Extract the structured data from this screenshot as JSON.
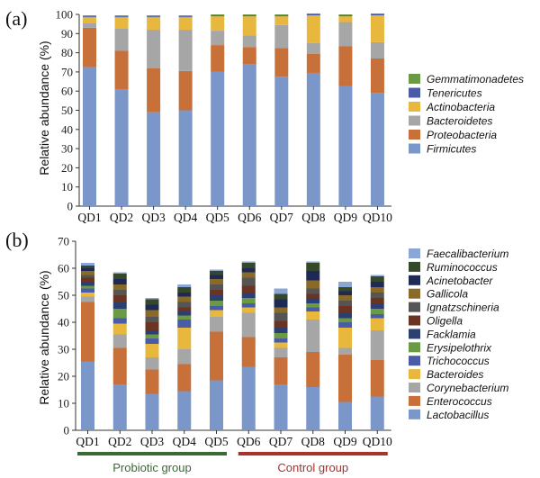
{
  "chart_data": [
    {
      "type": "bar",
      "stacked": true,
      "panel_label": "(a)",
      "ylabel": "Relative abundance (%)",
      "ylim": [
        0,
        100
      ],
      "yticks": [
        0,
        10,
        20,
        30,
        40,
        50,
        60,
        70,
        80,
        90,
        100
      ],
      "categories": [
        "QD1",
        "QD2",
        "QD3",
        "QD4",
        "QD5",
        "QD6",
        "QD7",
        "QD8",
        "QD9",
        "QD10"
      ],
      "legend_position": "right",
      "series": [
        {
          "name": "Firmicutes",
          "color": "#7b96c8",
          "values": [
            72.5,
            61,
            49,
            50,
            70,
            74,
            67.5,
            69.5,
            62.5,
            59
          ]
        },
        {
          "name": "Proteobacteria",
          "color": "#c8703a",
          "values": [
            20.5,
            20,
            23,
            20.5,
            14,
            9,
            15,
            10,
            21,
            18
          ]
        },
        {
          "name": "Bacteroidetes",
          "color": "#a6a6a6",
          "values": [
            2.5,
            11.5,
            20,
            21.5,
            7.5,
            6,
            12,
            5.5,
            12.5,
            8.5
          ]
        },
        {
          "name": "Actinobacteria",
          "color": "#e8b83e",
          "values": [
            3,
            6,
            6.5,
            6.5,
            7.5,
            10,
            4.5,
            14.5,
            3,
            14
          ]
        },
        {
          "name": "Tenericutes",
          "color": "#4a5ca8",
          "values": [
            0.5,
            0.5,
            0.5,
            0.5,
            0.5,
            0.5,
            0.5,
            0.5,
            0.5,
            0.5
          ]
        },
        {
          "name": "Gemmatimonadetes",
          "color": "#6a9a44",
          "values": [
            0.5,
            0.5,
            0.5,
            0.5,
            0.5,
            0.5,
            0.5,
            0.5,
            0.5,
            0.5
          ]
        }
      ]
    },
    {
      "type": "bar",
      "stacked": true,
      "panel_label": "(b)",
      "ylabel": "Relative abundance (%)",
      "ylim": [
        0,
        70
      ],
      "yticks": [
        0,
        10,
        20,
        30,
        40,
        50,
        60,
        70
      ],
      "categories": [
        "QD1",
        "QD2",
        "QD3",
        "QD4",
        "QD5",
        "QD6",
        "QD7",
        "QD8",
        "QD9",
        "QD10"
      ],
      "legend_position": "right",
      "groups": [
        {
          "label": "Probiotic group",
          "from": "QD1",
          "to": "QD5",
          "color": "#3a6a35"
        },
        {
          "label": "Control group",
          "from": "QD6",
          "to": "QD10",
          "color": "#a8322c"
        }
      ],
      "series": [
        {
          "name": "Lactobacillus",
          "color": "#7b96c8",
          "values": [
            25.5,
            17,
            13.5,
            14.5,
            18.5,
            23.5,
            17,
            16,
            10.5,
            12.5
          ]
        },
        {
          "name": "Enterococcus",
          "color": "#c8703a",
          "values": [
            22,
            13.5,
            9,
            10,
            18,
            11,
            10,
            13,
            17.5,
            13.5
          ]
        },
        {
          "name": "Corynebacterium",
          "color": "#a6a6a6",
          "values": [
            2,
            5,
            4.5,
            5.5,
            5.5,
            9,
            3.5,
            12,
            2.5,
            11
          ]
        },
        {
          "name": "Bacteroides",
          "color": "#e8b83e",
          "values": [
            1.5,
            4,
            5,
            8,
            2.5,
            2,
            2,
            3,
            7.5,
            4.5
          ]
        },
        {
          "name": "Trichococcus",
          "color": "#4a5ca8",
          "values": [
            1.5,
            2,
            2,
            3,
            1.5,
            1.5,
            1.5,
            1.5,
            2,
            1.5
          ]
        },
        {
          "name": "Erysipelothrix",
          "color": "#6a9a44",
          "values": [
            1,
            3.5,
            1.5,
            1.5,
            2,
            2,
            2,
            1.5,
            1.5,
            2
          ]
        },
        {
          "name": "Facklamia",
          "color": "#2c3f70",
          "values": [
            1.5,
            2.5,
            1.5,
            1.5,
            2,
            2,
            2,
            2,
            2,
            2
          ]
        },
        {
          "name": "Oligella",
          "color": "#6b3322",
          "values": [
            1.5,
            2.5,
            3,
            1.5,
            2,
            2.5,
            2.5,
            1.5,
            2.5,
            2
          ]
        },
        {
          "name": "Ignatzschineria",
          "color": "#555555",
          "values": [
            1,
            2,
            2,
            2,
            2,
            3,
            3,
            2,
            2,
            2
          ]
        },
        {
          "name": "Gallicola",
          "color": "#8a6a28",
          "values": [
            1.5,
            2,
            2.5,
            2,
            2,
            2,
            2,
            3,
            2,
            2
          ]
        },
        {
          "name": "Acinetobacter",
          "color": "#1e2a55",
          "values": [
            1,
            2,
            2,
            1.5,
            1.5,
            1.5,
            3,
            3.5,
            1.5,
            2
          ]
        },
        {
          "name": "Ruminococcus",
          "color": "#35482a",
          "values": [
            1,
            2,
            2,
            2,
            1.5,
            2,
            2,
            3,
            1.5,
            2
          ]
        },
        {
          "name": "Faecalibacterium",
          "color": "#8aa6d6",
          "values": [
            1,
            0.5,
            0.5,
            1,
            0.5,
            0.5,
            2,
            0.5,
            2,
            0.5
          ]
        }
      ]
    }
  ]
}
